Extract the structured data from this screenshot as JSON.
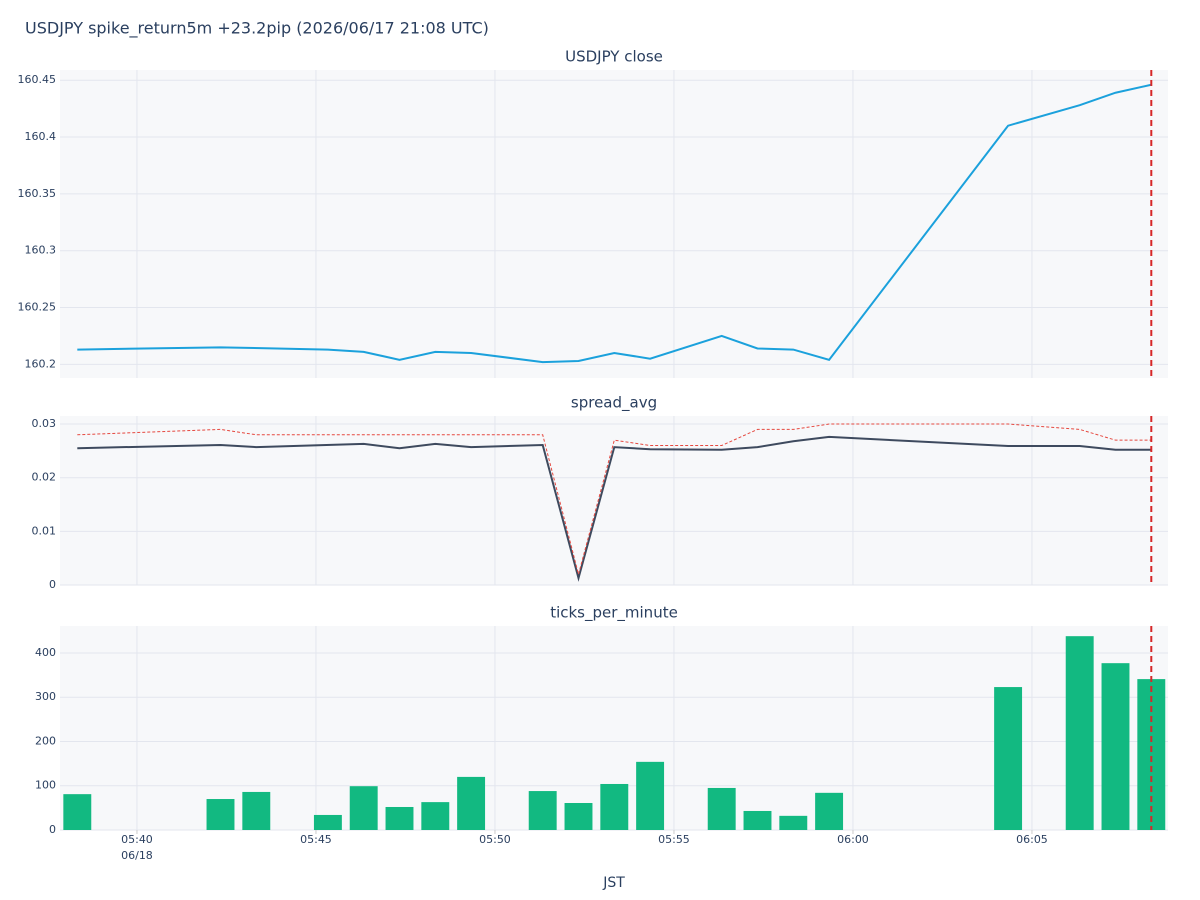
{
  "title": "USDJPY spike_return5m +23.2pip (2026/06/17 21:08 UTC)",
  "x_axis": {
    "label": "JST",
    "lim": [
      "05:37:51",
      "06:08:48"
    ],
    "ticks": [
      {
        "value": "05:40:00",
        "label": "05:40"
      },
      {
        "value": "05:45:00",
        "label": "05:45"
      },
      {
        "value": "05:50:00",
        "label": "05:50"
      },
      {
        "value": "05:55:00",
        "label": "05:55"
      },
      {
        "value": "06:00:00",
        "label": "06:00"
      },
      {
        "value": "06:05:00",
        "label": "06:05"
      }
    ],
    "date": "06/18",
    "grid": true
  },
  "event_line": {
    "x": "06:08:20",
    "color": "#d62728"
  },
  "chart_data": [
    {
      "type": "line",
      "title": "USDJPY close",
      "ylim": [
        160.188,
        160.459
      ],
      "yticks": [
        160.2,
        160.25,
        160.3,
        160.35,
        160.4,
        160.45
      ],
      "grid": true,
      "series": [
        {
          "color": "#1ba1dc",
          "dash": false,
          "x": [
            "05:38:20",
            "05:42:20",
            "05:45:20",
            "05:46:20",
            "05:47:20",
            "05:48:20",
            "05:49:20",
            "05:51:20",
            "05:52:20",
            "05:53:20",
            "05:54:20",
            "05:56:20",
            "05:57:20",
            "05:58:20",
            "05:59:20",
            "06:04:20",
            "06:06:20",
            "06:07:20",
            "06:08:20"
          ],
          "values": [
            160.213,
            160.215,
            160.213,
            160.211,
            160.204,
            160.211,
            160.21,
            160.202,
            160.203,
            160.21,
            160.205,
            160.225,
            160.214,
            160.213,
            160.204,
            160.41,
            160.428,
            160.439,
            160.446
          ]
        }
      ]
    },
    {
      "type": "line",
      "title": "spread_avg",
      "ylim": [
        0,
        0.0315
      ],
      "yticks": [
        0,
        0.01,
        0.02,
        0.03
      ],
      "grid": true,
      "series": [
        {
          "color": "#3e4a5e",
          "dash": false,
          "x": [
            "05:38:20",
            "05:42:20",
            "05:43:20",
            "05:46:20",
            "05:47:20",
            "05:48:20",
            "05:49:20",
            "05:51:20",
            "05:52:20",
            "05:53:20",
            "05:54:20",
            "05:56:20",
            "05:57:20",
            "05:58:20",
            "05:59:20",
            "06:04:20",
            "06:06:20",
            "06:07:20",
            "06:08:20"
          ],
          "values": [
            0.0255,
            0.0261,
            0.0257,
            0.0263,
            0.0255,
            0.0263,
            0.0257,
            0.0261,
            0.0013,
            0.0257,
            0.0253,
            0.0252,
            0.0257,
            0.0268,
            0.0276,
            0.0259,
            0.0259,
            0.0252,
            0.0252
          ]
        },
        {
          "color": "#e5483f",
          "dash": true,
          "x": [
            "05:38:20",
            "05:42:20",
            "05:43:20",
            "05:46:20",
            "05:47:20",
            "05:48:20",
            "05:49:20",
            "05:51:20",
            "05:52:20",
            "05:53:20",
            "05:54:20",
            "05:56:20",
            "05:57:20",
            "05:58:20",
            "05:59:20",
            "06:04:20",
            "06:06:20",
            "06:07:20",
            "06:08:20"
          ],
          "values": [
            0.028,
            0.029,
            0.028,
            0.028,
            0.028,
            0.028,
            0.028,
            0.028,
            0.002,
            0.027,
            0.026,
            0.026,
            0.029,
            0.029,
            0.03,
            0.03,
            0.029,
            0.027,
            0.027
          ]
        }
      ]
    },
    {
      "type": "bar",
      "title": "ticks_per_minute",
      "ylim": [
        0,
        461
      ],
      "yticks": [
        0,
        100,
        200,
        300,
        400
      ],
      "grid": true,
      "series": [
        {
          "color": "#12b981",
          "x": [
            "05:38:20",
            "05:42:20",
            "05:43:20",
            "05:45:20",
            "05:46:20",
            "05:47:20",
            "05:48:20",
            "05:49:20",
            "05:51:20",
            "05:52:20",
            "05:53:20",
            "05:54:20",
            "05:56:20",
            "05:57:20",
            "05:58:20",
            "05:59:20",
            "06:04:20",
            "06:06:20",
            "06:07:20",
            "06:08:20"
          ],
          "values": [
            81,
            70,
            86,
            34,
            99,
            52,
            63,
            120,
            88,
            61,
            104,
            154,
            95,
            43,
            32,
            84,
            323,
            438,
            377,
            341
          ]
        }
      ]
    }
  ]
}
